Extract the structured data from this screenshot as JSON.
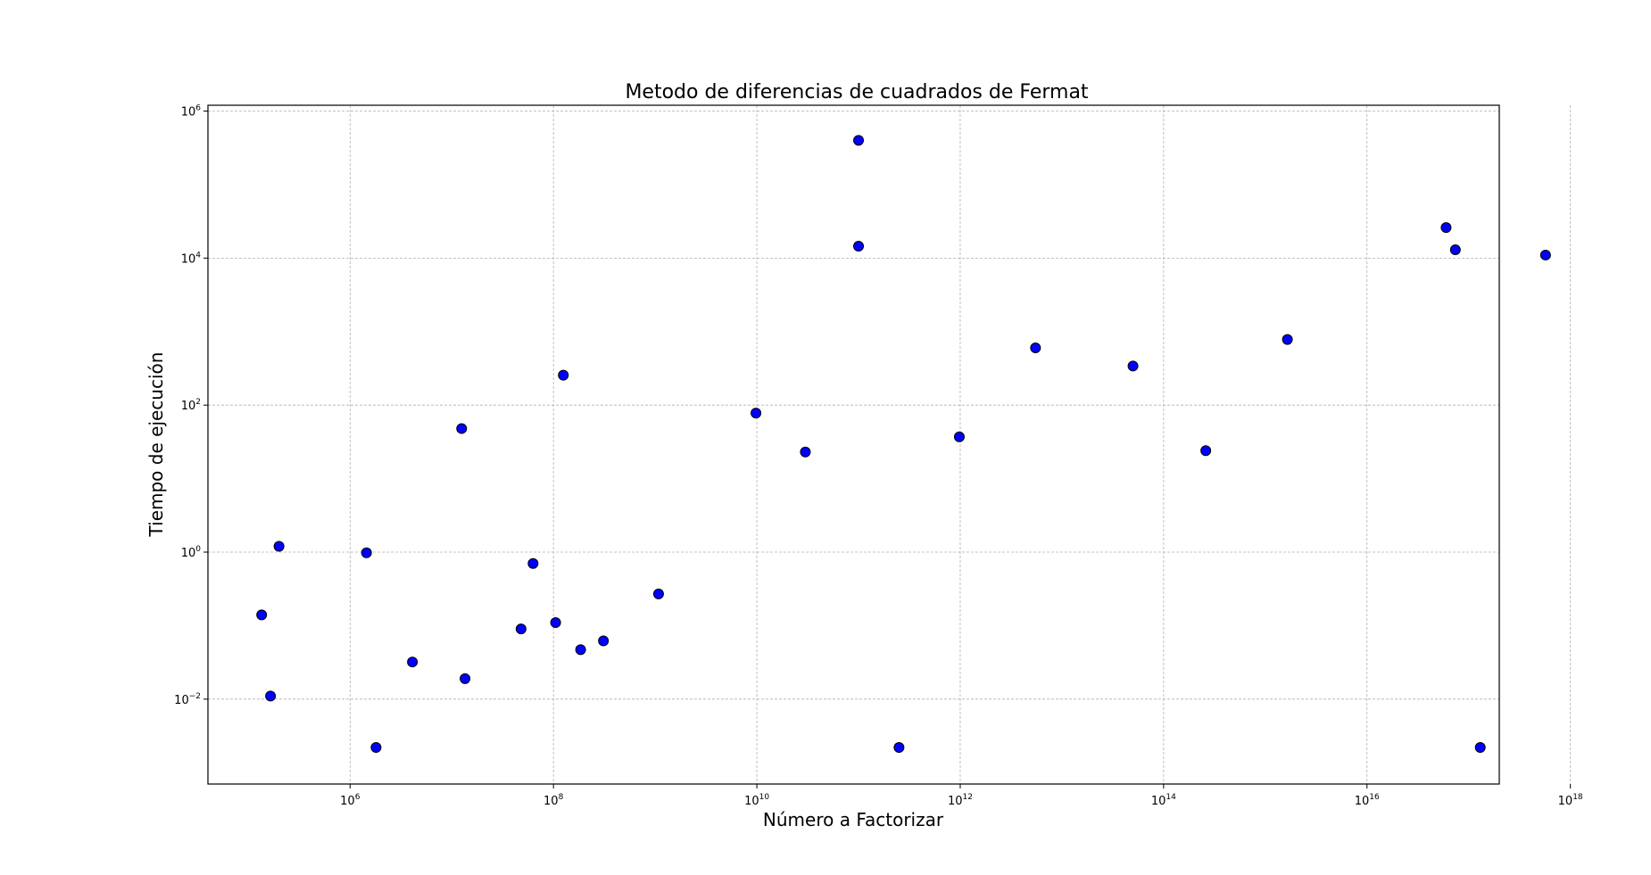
{
  "chart_data": {
    "type": "scatter",
    "title": "Metodo de diferencias de cuadrados de Fermat",
    "xlabel": "Número a Factorizar",
    "ylabel": "Tiempo de ejecución",
    "xscale": "log",
    "yscale": "log",
    "xlim": [
      40000,
      200000000000000000
    ],
    "ylim": [
      0.0007,
      1200000
    ],
    "x_ticks": [
      {
        "base": "10",
        "exp": "6"
      },
      {
        "base": "10",
        "exp": "8"
      },
      {
        "base": "10",
        "exp": "10"
      },
      {
        "base": "10",
        "exp": "12"
      },
      {
        "base": "10",
        "exp": "14"
      },
      {
        "base": "10",
        "exp": "16"
      },
      {
        "base": "10",
        "exp": "18"
      }
    ],
    "y_ticks": [
      {
        "base": "10",
        "exp": "−2"
      },
      {
        "base": "10",
        "exp": "0"
      },
      {
        "base": "10",
        "exp": "2"
      },
      {
        "base": "10",
        "exp": "4"
      },
      {
        "base": "10",
        "exp": "6"
      }
    ],
    "grid": true,
    "marker_color": "#0000ff",
    "marker_edge_color": "#000000",
    "points": [
      {
        "x": 135000,
        "y": 0.14
      },
      {
        "x": 165000,
        "y": 0.011
      },
      {
        "x": 200000,
        "y": 1.2
      },
      {
        "x": 1450000,
        "y": 0.98
      },
      {
        "x": 1800000,
        "y": 0.0022
      },
      {
        "x": 4100000,
        "y": 0.032
      },
      {
        "x": 12500000,
        "y": 48
      },
      {
        "x": 13500000,
        "y": 0.019
      },
      {
        "x": 48000000,
        "y": 0.09
      },
      {
        "x": 63000000,
        "y": 0.7
      },
      {
        "x": 105000000,
        "y": 0.11
      },
      {
        "x": 125000000,
        "y": 255
      },
      {
        "x": 185000000,
        "y": 0.047
      },
      {
        "x": 310000000,
        "y": 0.062
      },
      {
        "x": 1080000000,
        "y": 0.27
      },
      {
        "x": 9800000000,
        "y": 78
      },
      {
        "x": 30000000000,
        "y": 23
      },
      {
        "x": 100000000000,
        "y": 400000
      },
      {
        "x": 100000000000,
        "y": 14500
      },
      {
        "x": 250000000000,
        "y": 0.0022
      },
      {
        "x": 980000000000,
        "y": 37
      },
      {
        "x": 5500000000000,
        "y": 600
      },
      {
        "x": 50000000000000,
        "y": 340
      },
      {
        "x": 260000000000000,
        "y": 24
      },
      {
        "x": 1650000000000000,
        "y": 780
      },
      {
        "x": 60000000000000000,
        "y": 26000
      },
      {
        "x": 74000000000000000,
        "y": 13000
      },
      {
        "x": 130000000000000000,
        "y": 0.0022
      },
      {
        "x": 570000000000000000,
        "y": 11000
      }
    ]
  }
}
